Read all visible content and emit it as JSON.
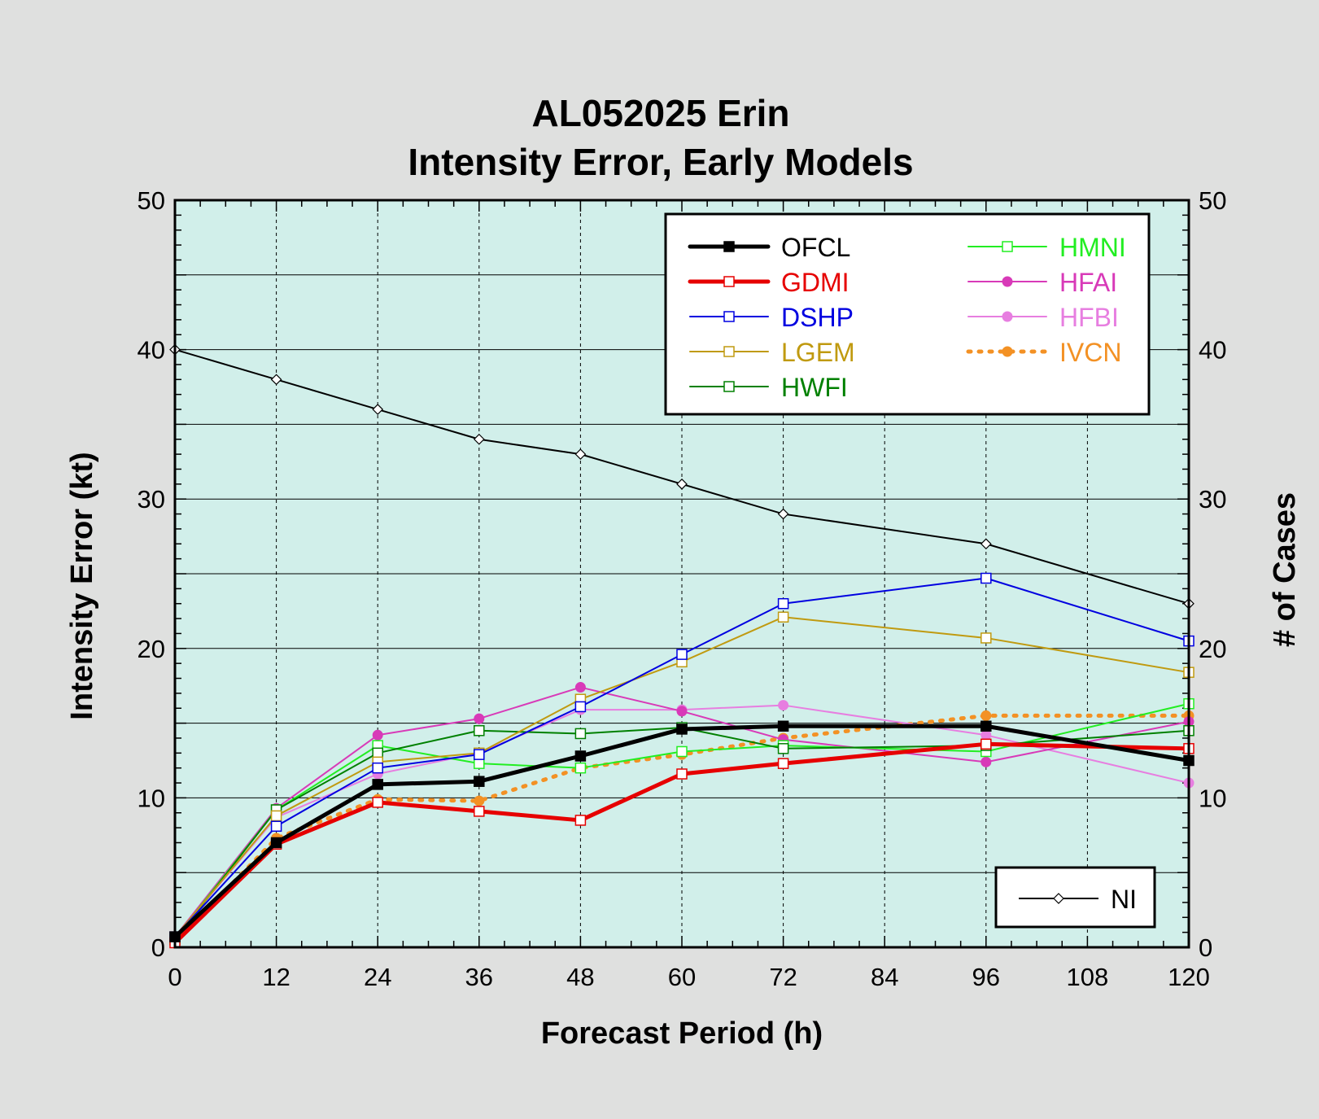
{
  "chart_data": {
    "type": "line",
    "title": "AL052025 Erin",
    "subtitle": "Intensity Error, Early Models",
    "xlabel": "Forecast Period (h)",
    "ylabel": "Intensity Error (kt)",
    "y2label": "# of Cases",
    "xlim": [
      0,
      120
    ],
    "ylim": [
      0,
      50
    ],
    "y2lim": [
      0,
      50
    ],
    "xticks": [
      0,
      12,
      24,
      36,
      48,
      60,
      72,
      84,
      96,
      108,
      120
    ],
    "yticks": [
      0,
      10,
      20,
      30,
      40,
      50
    ],
    "y2ticks": [
      0,
      10,
      20,
      30,
      40,
      50
    ],
    "grid": true,
    "legend_placement": "top-right",
    "background_color": "#d1efea",
    "x": [
      0,
      12,
      24,
      36,
      48,
      60,
      72,
      96,
      120
    ],
    "series": [
      {
        "name": "OFCL",
        "color": "#000000",
        "marker": "filled-square",
        "line": "thick",
        "values": [
          0.7,
          7.0,
          10.9,
          11.1,
          12.8,
          14.6,
          14.8,
          14.8,
          12.5
        ]
      },
      {
        "name": "GDMI",
        "color": "#e60000",
        "marker": "open-square",
        "line": "thick",
        "values": [
          0.3,
          6.9,
          9.7,
          9.1,
          8.5,
          11.6,
          12.3,
          13.6,
          13.3
        ]
      },
      {
        "name": "DSHP",
        "color": "#0000e0",
        "marker": "open-square",
        "line": "thin",
        "values": [
          0.7,
          8.1,
          12.0,
          12.9,
          16.1,
          19.6,
          23.0,
          24.7,
          20.5
        ]
      },
      {
        "name": "LGEM",
        "color": "#c09a10",
        "marker": "open-square",
        "line": "thin",
        "values": [
          0.7,
          8.8,
          12.4,
          13.0,
          16.6,
          19.1,
          22.1,
          20.7,
          18.4
        ]
      },
      {
        "name": "HWFI",
        "color": "#008000",
        "marker": "open-square",
        "line": "thin",
        "values": [
          0.5,
          9.2,
          13.0,
          14.5,
          14.3,
          14.7,
          13.3,
          13.5,
          14.5
        ]
      },
      {
        "name": "HMNI",
        "color": "#22ee22",
        "marker": "open-square",
        "line": "thin",
        "values": [
          0.6,
          9.2,
          13.5,
          12.3,
          12.0,
          13.1,
          13.5,
          13.1,
          16.3
        ]
      },
      {
        "name": "HFAI",
        "color": "#d83ab8",
        "marker": "filled-circle",
        "line": "thin",
        "values": [
          0.7,
          9.3,
          14.2,
          15.3,
          17.4,
          15.8,
          13.9,
          12.4,
          15.1
        ]
      },
      {
        "name": "HFBI",
        "color": "#e77ee0",
        "marker": "filled-circle",
        "line": "thin",
        "values": [
          0.7,
          8.7,
          11.6,
          13.0,
          15.9,
          15.9,
          16.2,
          14.2,
          11.0
        ]
      },
      {
        "name": "IVCN",
        "color": "#f39124",
        "marker": "filled-circle",
        "line": "dotted",
        "values": [
          0.3,
          7.3,
          9.9,
          9.8,
          12.0,
          12.9,
          14.0,
          15.5,
          15.5
        ]
      }
    ],
    "cases": {
      "name": "NI",
      "axis": "right",
      "color": "#000000",
      "marker": "open-diamond",
      "values": [
        40,
        38,
        36,
        34,
        33,
        31,
        29,
        27,
        23
      ]
    }
  }
}
